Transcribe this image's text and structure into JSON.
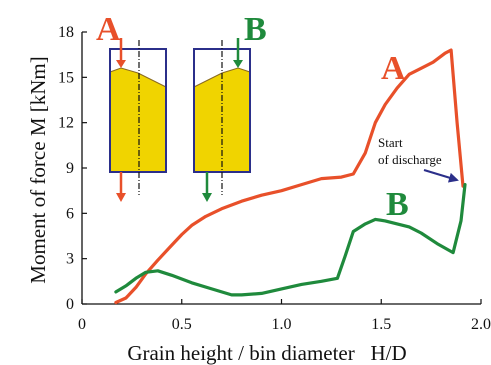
{
  "colors": {
    "series_a": "#e8502a",
    "series_b": "#1f8a3c",
    "bin_fill": "#f0d400",
    "bin_outline": "#2b2f8a",
    "annotation_arrow": "#2b2f8a"
  },
  "chart_data": {
    "type": "line",
    "xlabel": "Grain height / bin diameter   H/D",
    "ylabel": "Moment of force  M  [kNm]",
    "xlim": [
      0,
      2.0
    ],
    "ylim": [
      0,
      18
    ],
    "xticks": [
      {
        "value": 0,
        "label": "0"
      },
      {
        "value": 0.5,
        "label": "0.5"
      },
      {
        "value": 1.0,
        "label": "1.0"
      },
      {
        "value": 1.5,
        "label": "1.5"
      },
      {
        "value": 2.0,
        "label": "2.0"
      }
    ],
    "yticks": [
      {
        "value": 0,
        "label": "0"
      },
      {
        "value": 3,
        "label": "3"
      },
      {
        "value": 6,
        "label": "6"
      },
      {
        "value": 9,
        "label": "9"
      },
      {
        "value": 12,
        "label": "12"
      },
      {
        "value": 15,
        "label": "15"
      },
      {
        "value": 18,
        "label": "18"
      }
    ],
    "grid": false,
    "series": [
      {
        "name": "A",
        "color": "#e8502a",
        "x": [
          0.17,
          0.22,
          0.27,
          0.32,
          0.38,
          0.45,
          0.5,
          0.55,
          0.62,
          0.7,
          0.8,
          0.9,
          1.0,
          1.1,
          1.2,
          1.3,
          1.36,
          1.42,
          1.47,
          1.52,
          1.58,
          1.64,
          1.7,
          1.76,
          1.82,
          1.85,
          1.88,
          1.91
        ],
        "y": [
          0.1,
          0.4,
          1.1,
          2.0,
          2.9,
          3.9,
          4.6,
          5.2,
          5.8,
          6.3,
          6.8,
          7.2,
          7.5,
          7.9,
          8.3,
          8.4,
          8.6,
          10.0,
          12.0,
          13.2,
          14.3,
          15.2,
          15.6,
          16.0,
          16.6,
          16.8,
          12.0,
          7.8
        ]
      },
      {
        "name": "B",
        "color": "#1f8a3c",
        "x": [
          0.17,
          0.22,
          0.27,
          0.32,
          0.38,
          0.45,
          0.55,
          0.65,
          0.75,
          0.8,
          0.9,
          1.0,
          1.1,
          1.2,
          1.28,
          1.32,
          1.36,
          1.42,
          1.47,
          1.52,
          1.58,
          1.64,
          1.7,
          1.78,
          1.86,
          1.9,
          1.92
        ],
        "y": [
          0.8,
          1.2,
          1.7,
          2.1,
          2.2,
          1.9,
          1.4,
          1.0,
          0.6,
          0.6,
          0.7,
          1.0,
          1.3,
          1.5,
          1.7,
          3.2,
          4.8,
          5.3,
          5.6,
          5.5,
          5.3,
          5.1,
          4.7,
          4.0,
          3.4,
          5.5,
          7.9
        ]
      }
    ],
    "annotations": [
      {
        "text_lines": [
          "Start",
          "of discharge"
        ],
        "points_to": {
          "x": 1.91,
          "y": 7.9
        }
      }
    ]
  }
}
